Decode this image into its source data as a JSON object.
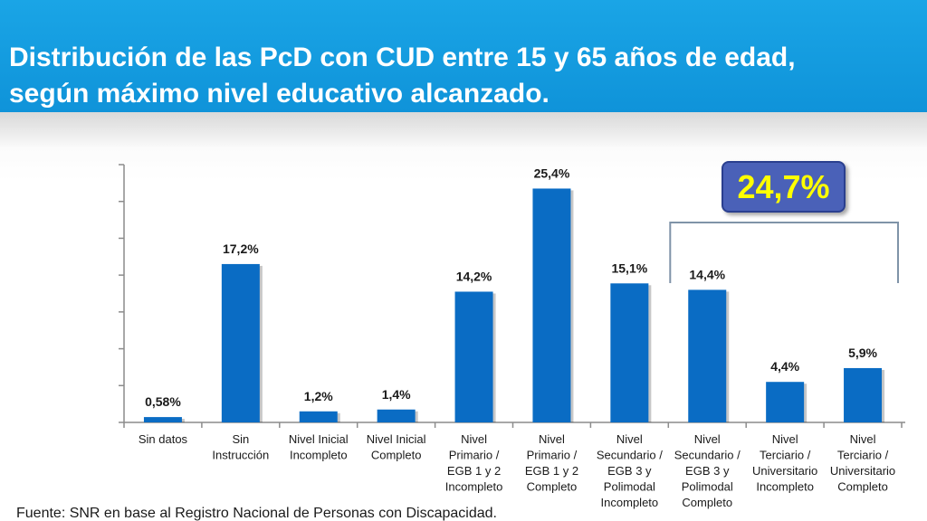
{
  "slide": {
    "title_line1": "Distribución de las PcD con CUD entre 15 y 65 años de edad,",
    "title_line2": "según máximo nivel educativo alcanzado.",
    "highlight": "24,7%",
    "source": "Fuente: SNR en base al Registro Nacional de Personas con Discapacidad."
  },
  "chart_data": {
    "type": "bar",
    "title": "Distribución de las PcD con CUD entre 15 y 65 años de edad, según máximo nivel educativo alcanzado.",
    "xlabel": "",
    "ylabel": "",
    "ylim": [
      0,
      28
    ],
    "grid": false,
    "categories": [
      [
        "Sin datos"
      ],
      [
        "Sin",
        "Instrucción"
      ],
      [
        "Nivel Inicial",
        "Incompleto"
      ],
      [
        "Nivel Inicial",
        "Completo"
      ],
      [
        "Nivel",
        "Primario /",
        "EGB 1 y 2",
        "Incompleto"
      ],
      [
        "Nivel",
        "Primario /",
        "EGB 1 y 2",
        "Completo"
      ],
      [
        "Nivel",
        "Secundario /",
        "EGB 3 y",
        "Polimodal",
        "Incompleto"
      ],
      [
        "Nivel",
        "Secundario /",
        "EGB 3 y",
        "Polimodal",
        "Completo"
      ],
      [
        "Nivel",
        "Terciario /",
        "Universitario",
        "Incompleto"
      ],
      [
        "Nivel",
        "Terciario /",
        "Universitario",
        "Completo"
      ]
    ],
    "values": [
      0.58,
      17.2,
      1.2,
      1.4,
      14.2,
      25.4,
      15.1,
      14.4,
      4.4,
      5.9
    ],
    "value_labels": [
      "0,58%",
      "17,2%",
      "1,2%",
      "1,4%",
      "14,2%",
      "25,4%",
      "15,1%",
      "14,4%",
      "4,4%",
      "5,9%"
    ],
    "bracket": {
      "from_category": 7,
      "to_category": 9,
      "label": "24,7%"
    },
    "colors": {
      "bar": "#0a6cc4",
      "axis": "#8c8c8c",
      "bracket": "#7f93a8"
    }
  }
}
